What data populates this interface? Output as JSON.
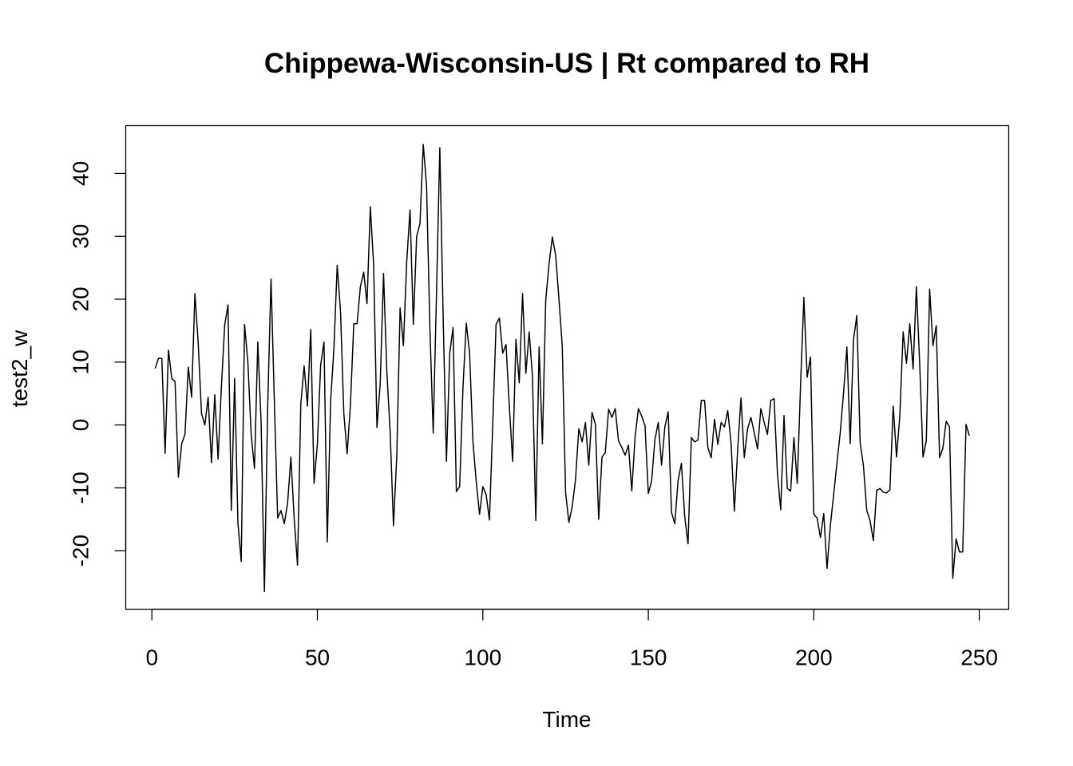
{
  "chart_data": {
    "type": "line",
    "title": "Chippewa-Wisconsin-US | Rt compared to RH",
    "xlabel": "Time",
    "ylabel": "test2_w",
    "xlim": [
      -7.9,
      258.9
    ],
    "ylim": [
      -29.3,
      47.6
    ],
    "x_ticks": [
      0,
      50,
      100,
      150,
      200,
      250
    ],
    "y_ticks": [
      -20,
      -10,
      0,
      10,
      20,
      30,
      40
    ],
    "grid": false,
    "line_color": "#000000",
    "series": [
      {
        "x_start": 1,
        "values": [
          9,
          10.6,
          10.6,
          -4.5,
          11.9,
          7.4,
          6.9,
          -8.3,
          -3,
          -1.5,
          9.2,
          4.4,
          20.9,
          13,
          1.8,
          0,
          4.4,
          -6,
          4.8,
          -5.4,
          6,
          15.9,
          19.1,
          -13.6,
          7.4,
          -15.6,
          -21.7,
          16,
          10,
          -1.5,
          -6.9,
          13.2,
          0.4,
          -26.5,
          3.2,
          23.2,
          3.8,
          -14.8,
          -13.6,
          -15.7,
          -12.5,
          -5.1,
          -14.9,
          -22.3,
          3.3,
          9.4,
          3,
          15.2,
          -9.3,
          -3,
          9.6,
          13.2,
          -18.6,
          3.7,
          12.2,
          25.4,
          18,
          1.8,
          -4.6,
          3.3,
          16.1,
          16.1,
          22,
          24.3,
          19.3,
          34.7,
          25.5,
          -0.4,
          6.7,
          24.1,
          8.4,
          -1.2,
          -16,
          -4.9,
          18.6,
          12.6,
          26,
          34.2,
          16,
          30,
          32,
          44.6,
          38,
          15.5,
          -1.3,
          21,
          44.1,
          17.3,
          -5.8,
          11.4,
          15.5,
          -10.6,
          -9.8,
          6,
          16.2,
          11.4,
          -2.6,
          -9,
          -14.2,
          -9.8,
          -11.1,
          -15.1,
          0.2,
          16,
          17,
          11.4,
          12.8,
          3,
          -5.8,
          13.6,
          6.7,
          20.9,
          8.2,
          14.8,
          7.7,
          -15.2,
          12.4,
          -3,
          19.8,
          25.6,
          29.9,
          27,
          20,
          12.5,
          -10.7,
          -15.5,
          -13,
          -8.7,
          -0.6,
          -2.7,
          0.4,
          -6.4,
          2,
          0.1,
          -15,
          -5.1,
          -4.4,
          2.5,
          1.2,
          2.6,
          -2.5,
          -3.6,
          -4.8,
          -3.2,
          -10.5,
          -1.9,
          2.6,
          1.4,
          -0.1,
          -10.9,
          -8.9,
          -2.3,
          0.4,
          -6.4,
          -0.3,
          2.1,
          -13.9,
          -15.7,
          -8.8,
          -6.1,
          -14.6,
          -18.9,
          -2,
          -2.7,
          -2.4,
          3.9,
          3.9,
          -3.6,
          -5.2,
          0.9,
          -3.1,
          0.4,
          -0.3,
          2.3,
          -2.9,
          -13.7,
          -3.9,
          4.3,
          -5.2,
          -0.6,
          1.2,
          -1.2,
          -3.8,
          2.6,
          0.4,
          -1.5,
          3.9,
          4.2,
          -7.6,
          -13.5,
          1.5,
          -10.1,
          -10.5,
          -2,
          -9.3,
          6.3,
          20.3,
          7.6,
          10.8,
          -14.2,
          -14.8,
          -17.9,
          -14.1,
          -22.8,
          -16,
          -11.1,
          -6,
          -1.2,
          5.2,
          12.4,
          -3,
          13.6,
          17.4,
          -2.8,
          -6.5,
          -13.6,
          -15.2,
          -18.4,
          -10.4,
          -10.1,
          -10.7,
          -10.8,
          -10.3,
          3,
          -5.1,
          1.5,
          14.8,
          9.8,
          16.1,
          8.9,
          22,
          9.7,
          -5.1,
          -2.5,
          21.6,
          12.6,
          15.8,
          -5.2,
          -3.7,
          0.6,
          -0.3,
          -24.4,
          -18.1,
          -20.2,
          -20.2,
          0.1,
          -1.7
        ]
      }
    ]
  }
}
